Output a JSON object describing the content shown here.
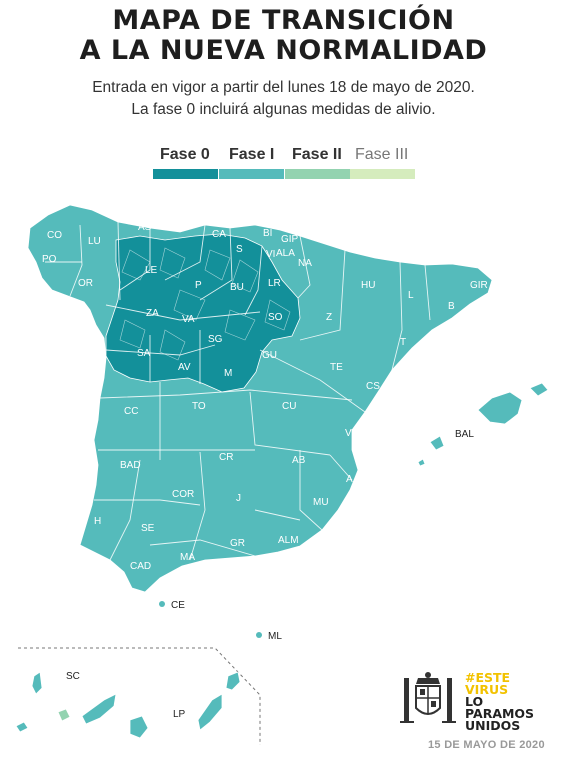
{
  "title": {
    "line1": "MAPA DE TRANSICIÓN",
    "line2": "A LA NUEVA NORMALIDAD"
  },
  "subtitle": {
    "line1": "Entrada en vigor a partir del lunes 18 de mayo de 2020.",
    "line2": "La fase 0 incluirá algunas medidas de alivio."
  },
  "legend": [
    {
      "label": "Fase 0",
      "color": "#13909a"
    },
    {
      "label": "Fase I",
      "color": "#55bbbb"
    },
    {
      "label": "Fase II",
      "color": "#93d3b0"
    },
    {
      "label": "Fase III",
      "color": "#d5ecbd"
    }
  ],
  "colors": {
    "phase0": "#13909a",
    "phase1": "#55bbbb",
    "phase2": "#93d3b0",
    "phase3": "#d5ecbd",
    "border": "#ffffff"
  },
  "map": {
    "province_codes": [
      "CO",
      "LU",
      "AS",
      "S",
      "BI",
      "GIP",
      "PO",
      "OR",
      "LE",
      "P",
      "BU",
      "VI",
      "ALA",
      "NA",
      "LR",
      "HU",
      "GIR",
      "L",
      "B",
      "ZA",
      "VA",
      "SO",
      "Z",
      "T",
      "SA",
      "SG",
      "GU",
      "TE",
      "CS",
      "AV",
      "M",
      "CC",
      "TO",
      "CU",
      "V",
      "BAL",
      "BAD",
      "CR",
      "AB",
      "A",
      "COR",
      "J",
      "MU",
      "H",
      "SE",
      "GR",
      "ALM",
      "CAD",
      "MA",
      "CE",
      "ML",
      "SC",
      "LP",
      "CA"
    ],
    "external_labels": {
      "ce": "CE",
      "ml": "ML",
      "bal": "BAL",
      "sc": "SC",
      "lp": "LP"
    }
  },
  "campaign": {
    "line1": "#ESTE",
    "line2": "VIRUS",
    "line3": "LO",
    "line4": "PARAMOS",
    "line5": "UNIDOS"
  },
  "date": "15 DE MAYO DE 2020"
}
